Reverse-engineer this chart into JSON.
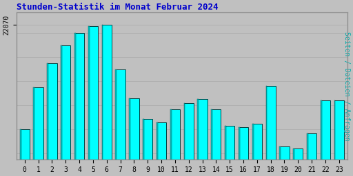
{
  "title": "Stunden-Statistik im Monat Februar 2024",
  "title_color": "#0000CC",
  "ylabel": "Seiten / Dateien / Anfragen",
  "ylabel_color": "#00AAAA",
  "background_color": "#C0C0C0",
  "plot_bg_color": "#C0C0C0",
  "bar_face_color": "#00FFFF",
  "bar_edge_color": "#004040",
  "bar_left_color": "#00CCCC",
  "ytick_label": "22070",
  "ytick_value": 22070,
  "categories": [
    0,
    1,
    2,
    3,
    4,
    5,
    6,
    7,
    8,
    9,
    10,
    11,
    12,
    13,
    14,
    15,
    16,
    17,
    18,
    19,
    20,
    21,
    22,
    23
  ],
  "values": [
    21200,
    21550,
    21750,
    21900,
    22000,
    22055,
    22070,
    21700,
    21460,
    21290,
    21260,
    21370,
    21420,
    21450,
    21370,
    21230,
    21220,
    21250,
    21560,
    21060,
    21040,
    21170,
    21440,
    21440
  ],
  "ylim_min": 20950,
  "ylim_max": 22170,
  "yticks": [
    22070
  ],
  "grid_color": "#AAAAAA",
  "grid_lines_y": [
    21000,
    21200,
    21400,
    21600,
    21800,
    22000,
    22070
  ],
  "figsize": [
    5.12,
    2.56
  ],
  "dpi": 100,
  "bar_width": 0.72,
  "spine_color": "#888888",
  "title_fontsize": 9,
  "tick_fontsize": 7,
  "ylabel_fontsize": 7
}
